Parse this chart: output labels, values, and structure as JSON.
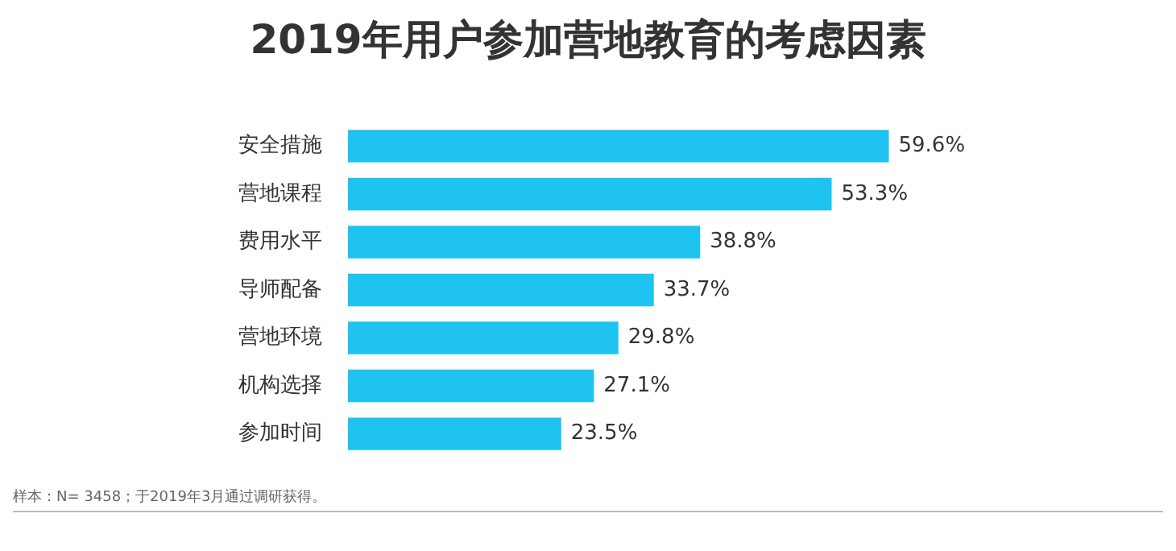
{
  "chart_data": {
    "type": "bar",
    "title": "2019年用户参加营地教育的考虑因素",
    "orientation": "horizontal",
    "categories": [
      "安全措施",
      "营地课程",
      "费用水平",
      "导师配备",
      "营地环境",
      "机构选择",
      "参加时间"
    ],
    "values": [
      59.6,
      53.3,
      38.8,
      33.7,
      29.8,
      27.1,
      23.5
    ],
    "value_labels": [
      "59.6%",
      "53.3%",
      "38.8%",
      "33.7%",
      "29.8%",
      "27.1%",
      "23.5%"
    ],
    "color": "#1ec3f0",
    "legend": false,
    "tick_labels": "y",
    "annotations": [
      "样本：N= 3458；于2019年3月通过调研获得。"
    ]
  }
}
